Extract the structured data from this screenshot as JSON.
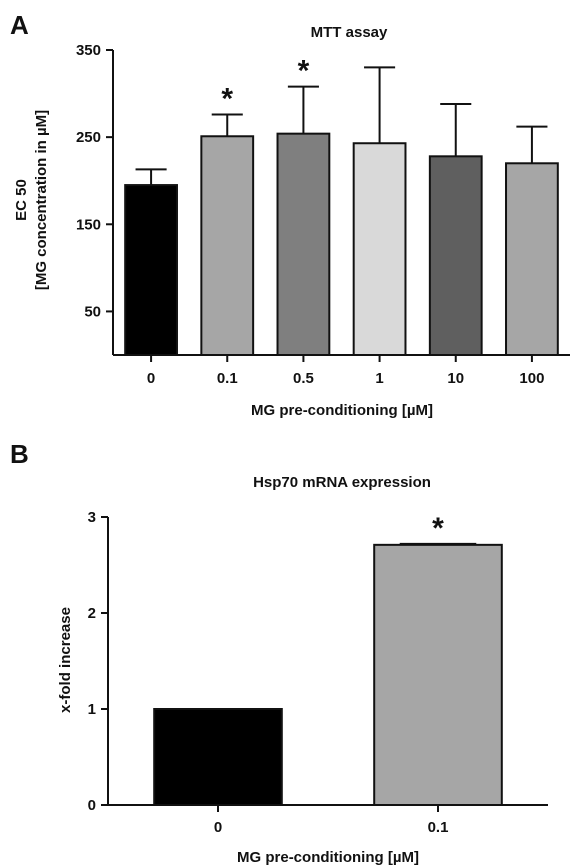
{
  "chart_data": [
    {
      "type": "bar",
      "panel": "A",
      "title": "MTT assay",
      "xlabel": "MG pre-conditioning [µM]",
      "ylabel_lines": [
        "EC 50",
        "[MG concentration in µM]"
      ],
      "categories": [
        "0",
        "0.1",
        "0.5",
        "1",
        "10",
        "100"
      ],
      "values": [
        195,
        251,
        254,
        243,
        228,
        220
      ],
      "error_upper": [
        213,
        276,
        308,
        330,
        288,
        262
      ],
      "significant": [
        false,
        true,
        true,
        false,
        false,
        false
      ],
      "significance_marker": "*",
      "colors": [
        "#000000",
        "#a6a6a6",
        "#7f7f7f",
        "#d9d9d9",
        "#5f5f5f",
        "#a6a6a6"
      ],
      "ylim": [
        0,
        350
      ],
      "yticks": [
        50,
        150,
        250,
        350
      ],
      "grid": false
    },
    {
      "type": "bar",
      "panel": "B",
      "title": "Hsp70 mRNA expression",
      "xlabel": "MG pre-conditioning [µM]",
      "ylabel": "x-fold increase",
      "categories": [
        "0",
        "0.1"
      ],
      "values": [
        1.0,
        2.71
      ],
      "error_upper": [
        1.0,
        2.72
      ],
      "significant": [
        false,
        true
      ],
      "significance_marker": "*",
      "colors": [
        "#000000",
        "#a6a6a6"
      ],
      "ylim": [
        0,
        3
      ],
      "yticks": [
        0,
        1,
        2,
        3
      ],
      "grid": false
    }
  ]
}
